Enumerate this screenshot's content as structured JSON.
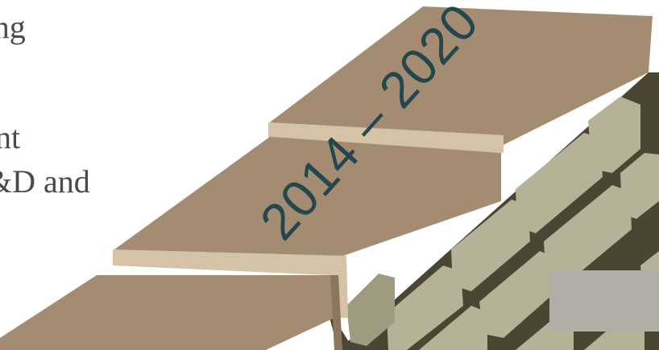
{
  "text_fragments": [
    "rging",
    "nt",
    "&D and"
  ],
  "illustration": {
    "banner_text": "2014 – 2020",
    "colors": {
      "cap_top": "#a38c72",
      "cap_joint": "#d4c3a6",
      "wall_dark": "#4a4633",
      "brick_light": "#b5b298",
      "brick_mid": "#9f9a80",
      "year_text": "#24474e",
      "gray_box": "#b1ada7"
    }
  }
}
